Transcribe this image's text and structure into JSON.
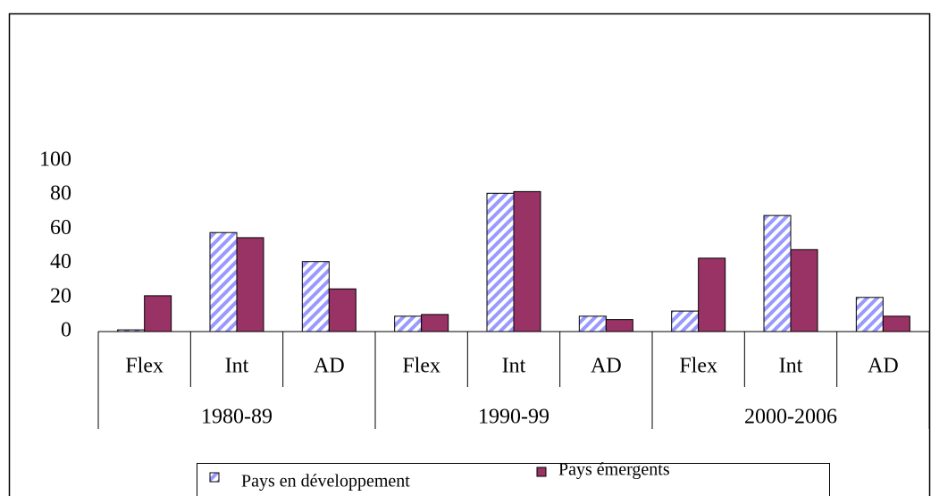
{
  "chart_data": {
    "type": "bar",
    "categories": [
      "Flex",
      "Int",
      "AD",
      "Flex",
      "Int",
      "AD",
      "Flex",
      "Int",
      "AD"
    ],
    "groups": [
      "1980-89",
      "1990-99",
      "2000-2006"
    ],
    "series": [
      {
        "name": "Pays en développement",
        "color": "#9999ff",
        "hatch": true,
        "values": [
          1,
          58,
          41,
          9,
          81,
          9,
          12,
          68,
          20
        ]
      },
      {
        "name": "Pays émergents",
        "color": "#993366",
        "hatch": false,
        "values": [
          21,
          55,
          25,
          10,
          82,
          7,
          43,
          48,
          9
        ]
      }
    ],
    "ylim": [
      0,
      100
    ],
    "yticks": [
      0,
      20,
      40,
      60,
      80,
      100
    ],
    "grid": false,
    "legend": "bottom"
  }
}
